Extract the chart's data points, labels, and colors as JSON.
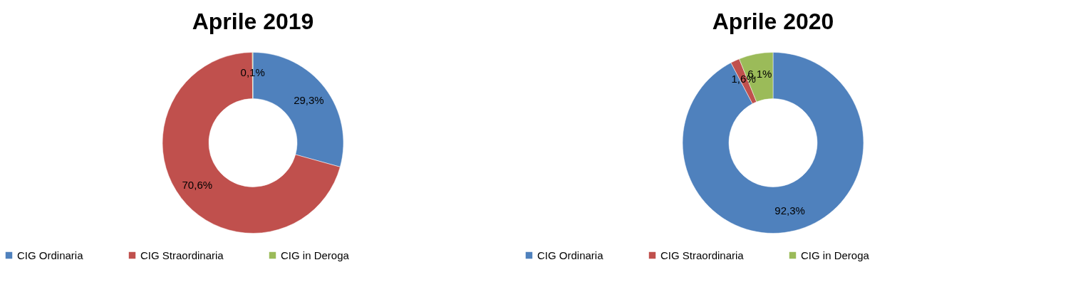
{
  "chart_data": [
    {
      "type": "donut",
      "title": "Aprile 2019",
      "categories": [
        "CIG Ordinaria",
        "CIG Straordinaria",
        "CIG in Deroga"
      ],
      "values": [
        29.3,
        70.6,
        0.1
      ],
      "colors": [
        "#4f81bd",
        "#c0504d",
        "#9bbb59"
      ],
      "value_labels": [
        "29,3%",
        "70,6%",
        "0,1%"
      ],
      "legend": "bottom"
    },
    {
      "type": "donut",
      "title": "Aprile 2020",
      "categories": [
        "CIG Ordinaria",
        "CIG Straordinaria",
        "CIG in Deroga"
      ],
      "values": [
        92.3,
        1.6,
        6.1
      ],
      "colors": [
        "#4f81bd",
        "#c0504d",
        "#9bbb59"
      ],
      "value_labels": [
        "92,3%",
        "1,6%",
        "6,1%"
      ],
      "legend": "bottom"
    }
  ]
}
